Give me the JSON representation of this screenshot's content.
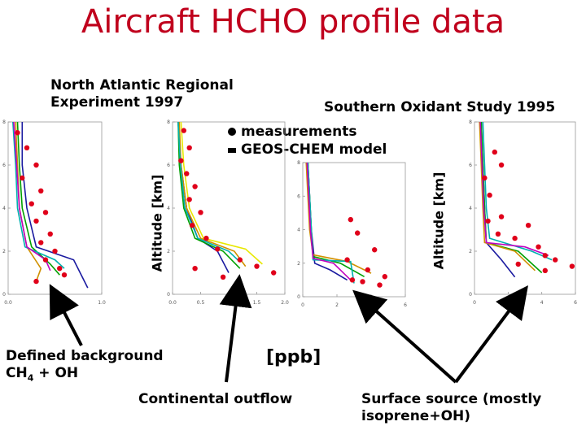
{
  "title": "Aircraft HCHO profile data",
  "campaign_left": [
    "North Atlantic Regional",
    "Experiment 1997"
  ],
  "campaign_right": "Southern Oxidant Study 1995",
  "legend": {
    "measurements": "measurements",
    "model": "GEOS-CHEM model"
  },
  "ylabel_left": "Altitude [km]",
  "ylabel_right": "Altitude [km]",
  "xlabel": "[ppb]",
  "annotations": {
    "background": [
      "Defined background",
      "CH",
      "4",
      " + OH"
    ],
    "outflow": "Continental outflow",
    "surface": [
      "Surface source (mostly",
      "isoprene+OH)"
    ]
  },
  "colors": {
    "title": "#c0001d",
    "measurements": "#e0001a"
  },
  "chart_data": [
    {
      "type": "line",
      "panel": "NARE 1997 (left)",
      "xticks": [
        "0.0",
        "0.5",
        "1.0"
      ],
      "xlim": [
        0,
        1.0
      ],
      "yticks": [
        "0",
        "2",
        "4",
        "6",
        "8"
      ],
      "ylim": [
        0,
        8
      ],
      "measurements": [
        [
          0.1,
          7.5
        ],
        [
          0.2,
          6.8
        ],
        [
          0.3,
          6.0
        ],
        [
          0.15,
          5.4
        ],
        [
          0.35,
          4.8
        ],
        [
          0.25,
          4.2
        ],
        [
          0.4,
          3.8
        ],
        [
          0.3,
          3.4
        ],
        [
          0.45,
          2.8
        ],
        [
          0.35,
          2.4
        ],
        [
          0.5,
          2.0
        ],
        [
          0.4,
          1.6
        ],
        [
          0.55,
          1.2
        ],
        [
          0.6,
          0.9
        ],
        [
          0.3,
          0.6
        ]
      ],
      "series": [
        {
          "color": "#1a1aa0",
          "points": [
            [
              0.15,
              8
            ],
            [
              0.15,
              6
            ],
            [
              0.2,
              4
            ],
            [
              0.3,
              2.2
            ],
            [
              0.7,
              1.6
            ],
            [
              0.85,
              0.3
            ]
          ]
        },
        {
          "color": "#00a000",
          "points": [
            [
              0.1,
              8
            ],
            [
              0.12,
              6
            ],
            [
              0.15,
              4
            ],
            [
              0.25,
              2.2
            ],
            [
              0.45,
              1.4
            ],
            [
              0.55,
              0.9
            ]
          ]
        },
        {
          "color": "#d09000",
          "points": [
            [
              0.08,
              8
            ],
            [
              0.1,
              6
            ],
            [
              0.12,
              4
            ],
            [
              0.2,
              2.2
            ],
            [
              0.35,
              1.2
            ],
            [
              0.3,
              0.6
            ]
          ]
        },
        {
          "color": "#00b0b0",
          "points": [
            [
              0.05,
              8
            ],
            [
              0.08,
              6
            ],
            [
              0.1,
              4
            ],
            [
              0.18,
              2.2
            ],
            [
              0.5,
              1.6
            ],
            [
              0.6,
              1.2
            ]
          ]
        },
        {
          "color": "#c000c0",
          "points": [
            [
              0.06,
              8
            ],
            [
              0.09,
              6
            ],
            [
              0.12,
              4
            ],
            [
              0.2,
              2.2
            ],
            [
              0.4,
              1.6
            ],
            [
              0.45,
              1.1
            ]
          ]
        }
      ]
    },
    {
      "type": "line",
      "panel": "NARE 1997 (middle)",
      "xticks": [
        "0.0",
        "0.5",
        "1.0",
        "1.5",
        "2.0"
      ],
      "xlim": [
        0,
        2.0
      ],
      "yticks": [
        "0",
        "2",
        "4",
        "6",
        "8"
      ],
      "ylim": [
        0,
        8
      ],
      "measurements": [
        [
          0.2,
          7.6
        ],
        [
          0.3,
          6.8
        ],
        [
          0.15,
          6.2
        ],
        [
          0.25,
          5.6
        ],
        [
          0.4,
          5.0
        ],
        [
          0.3,
          4.4
        ],
        [
          0.5,
          3.8
        ],
        [
          0.35,
          3.2
        ],
        [
          0.6,
          2.6
        ],
        [
          0.8,
          2.1
        ],
        [
          1.2,
          1.6
        ],
        [
          1.5,
          1.3
        ],
        [
          1.8,
          1.0
        ],
        [
          0.9,
          0.8
        ],
        [
          0.4,
          1.2
        ]
      ],
      "series": [
        {
          "color": "#1a1aa0",
          "points": [
            [
              0.1,
              8
            ],
            [
              0.15,
              6
            ],
            [
              0.25,
              4
            ],
            [
              0.45,
              2.6
            ],
            [
              0.8,
              2.0
            ],
            [
              1.0,
              1.0
            ]
          ]
        },
        {
          "color": "#00a000",
          "points": [
            [
              0.1,
              8
            ],
            [
              0.12,
              6
            ],
            [
              0.2,
              4
            ],
            [
              0.4,
              2.6
            ],
            [
              0.9,
              2.0
            ],
            [
              1.2,
              1.2
            ]
          ]
        },
        {
          "color": "#d09000",
          "points": [
            [
              0.12,
              8
            ],
            [
              0.15,
              6
            ],
            [
              0.25,
              4
            ],
            [
              0.5,
              2.6
            ],
            [
              1.1,
              2.0
            ],
            [
              1.3,
              1.3
            ]
          ]
        },
        {
          "color": "#e8e800",
          "points": [
            [
              0.15,
              8
            ],
            [
              0.2,
              6
            ],
            [
              0.3,
              4
            ],
            [
              0.55,
              2.6
            ],
            [
              1.3,
              2.1
            ],
            [
              1.6,
              1.4
            ]
          ]
        },
        {
          "color": "#00b0b0",
          "points": [
            [
              0.1,
              8
            ],
            [
              0.14,
              6
            ],
            [
              0.22,
              4
            ],
            [
              0.45,
              2.6
            ],
            [
              1.0,
              2.0
            ],
            [
              1.2,
              1.5
            ]
          ]
        }
      ]
    },
    {
      "type": "line",
      "panel": "SOS 1995 (middle)",
      "xticks": [
        "0",
        "2",
        "4",
        "6"
      ],
      "xlim": [
        0,
        6
      ],
      "yticks": [
        "0",
        "2",
        "4",
        "6",
        "8"
      ],
      "ylim": [
        0,
        8
      ],
      "measurements": [
        [
          2.8,
          4.6
        ],
        [
          3.2,
          3.8
        ],
        [
          4.2,
          2.8
        ],
        [
          2.6,
          2.2
        ],
        [
          3.8,
          1.6
        ],
        [
          4.8,
          1.2
        ],
        [
          3.5,
          0.9
        ],
        [
          4.5,
          0.7
        ],
        [
          2.9,
          1.0
        ]
      ],
      "series": [
        {
          "color": "#1a1aa0",
          "points": [
            [
              0.3,
              8
            ],
            [
              0.4,
              6
            ],
            [
              0.5,
              4
            ],
            [
              0.7,
              2.0
            ],
            [
              1.6,
              1.6
            ],
            [
              2.6,
              1.0
            ]
          ]
        },
        {
          "color": "#00a000",
          "points": [
            [
              0.3,
              8
            ],
            [
              0.4,
              6
            ],
            [
              0.5,
              4
            ],
            [
              0.6,
              2.4
            ],
            [
              2.2,
              2.0
            ],
            [
              3.6,
              1.2
            ]
          ]
        },
        {
          "color": "#d09000",
          "points": [
            [
              0.2,
              8
            ],
            [
              0.3,
              6
            ],
            [
              0.4,
              4
            ],
            [
              0.6,
              2.5
            ],
            [
              2.6,
              2.1
            ],
            [
              4.0,
              1.4
            ]
          ]
        },
        {
          "color": "#00b0b0",
          "points": [
            [
              0.3,
              8
            ],
            [
              0.4,
              6
            ],
            [
              0.5,
              4
            ],
            [
              0.6,
              2.2
            ],
            [
              2.8,
              2.1
            ],
            [
              3.0,
              0.8
            ]
          ]
        },
        {
          "color": "#c000c0",
          "points": [
            [
              0.25,
              8
            ],
            [
              0.35,
              6
            ],
            [
              0.45,
              4
            ],
            [
              0.6,
              2.3
            ],
            [
              1.8,
              2.0
            ],
            [
              2.8,
              1.0
            ]
          ]
        }
      ]
    },
    {
      "type": "line",
      "panel": "SOS 1995 (right)",
      "xticks": [
        "0",
        "2",
        "4",
        "6"
      ],
      "xlim": [
        0,
        6
      ],
      "yticks": [
        "0",
        "2",
        "4",
        "6",
        "8"
      ],
      "ylim": [
        0,
        8
      ],
      "measurements": [
        [
          1.2,
          6.6
        ],
        [
          1.6,
          6.0
        ],
        [
          0.6,
          5.4
        ],
        [
          0.9,
          4.6
        ],
        [
          0.8,
          3.4
        ],
        [
          1.6,
          3.6
        ],
        [
          1.4,
          2.8
        ],
        [
          3.2,
          3.2
        ],
        [
          2.4,
          2.6
        ],
        [
          3.8,
          2.2
        ],
        [
          4.2,
          1.8
        ],
        [
          4.8,
          1.6
        ],
        [
          2.6,
          1.4
        ],
        [
          5.8,
          1.3
        ],
        [
          4.2,
          1.1
        ]
      ],
      "series": [
        {
          "color": "#1a1aa0",
          "points": [
            [
              0.4,
              8
            ],
            [
              0.5,
              6
            ],
            [
              0.6,
              4
            ],
            [
              0.7,
              2.4
            ],
            [
              1.6,
              1.6
            ],
            [
              2.4,
              0.8
            ]
          ]
        },
        {
          "color": "#00a000",
          "points": [
            [
              0.4,
              8
            ],
            [
              0.5,
              6
            ],
            [
              0.6,
              4
            ],
            [
              0.7,
              2.4
            ],
            [
              2.6,
              2.0
            ],
            [
              4.0,
              1.0
            ]
          ]
        },
        {
          "color": "#d09000",
          "points": [
            [
              0.3,
              8
            ],
            [
              0.4,
              6
            ],
            [
              0.5,
              4
            ],
            [
              0.6,
              2.4
            ],
            [
              2.4,
              2.0
            ],
            [
              3.6,
              1.1
            ]
          ]
        },
        {
          "color": "#00b0b0",
          "points": [
            [
              0.5,
              8
            ],
            [
              0.6,
              6
            ],
            [
              0.7,
              4
            ],
            [
              0.9,
              2.6
            ],
            [
              3.4,
              2.0
            ],
            [
              4.6,
              1.6
            ]
          ]
        },
        {
          "color": "#c000c0",
          "points": [
            [
              0.35,
              8
            ],
            [
              0.45,
              6
            ],
            [
              0.55,
              4
            ],
            [
              0.7,
              2.4
            ],
            [
              3.0,
              2.2
            ],
            [
              4.4,
              1.8
            ]
          ]
        }
      ]
    }
  ]
}
